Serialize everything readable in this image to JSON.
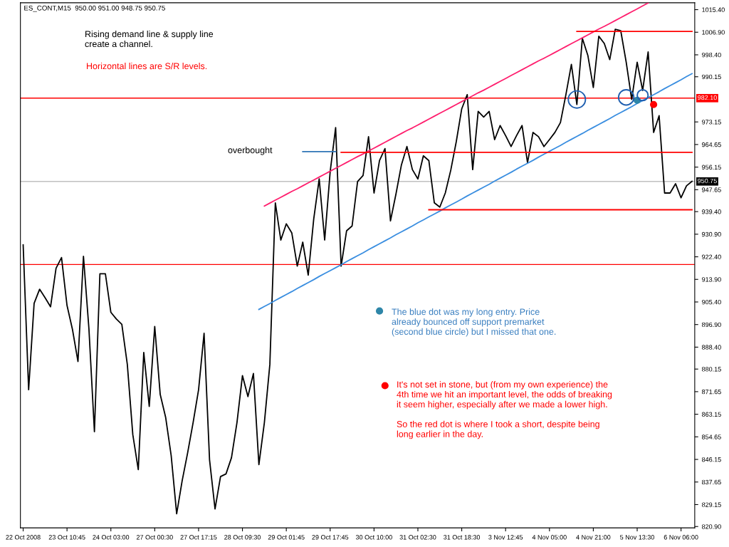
{
  "chart_data": {
    "type": "line",
    "title": "ES_CONT,M15  950.00 951.00 948.75 950.75",
    "annotations": [
      "Rising demand line & supply line\ncreate a channel.",
      "Horizontal lines are S/R levels.",
      "overbought",
      "The blue dot was my long entry. Price\nalready bounced off support premarket\n(second blue circle) but I missed that one.",
      "It's not set in stone, but (from my own experience) the\n4th time we hit an important level, the odds of breaking\nit seem higher, especially after we made a lower high.\n\nSo the red dot is where I took a short, despite being\nlong earlier in the day."
    ],
    "categories": [
      "22 Oct 2008",
      null,
      null,
      null,
      null,
      null,
      null,
      null,
      "23 Oct 10:45",
      null,
      null,
      null,
      null,
      null,
      null,
      null,
      "24 Oct 03:00",
      null,
      null,
      null,
      null,
      null,
      null,
      null,
      "27 Oct 00:30",
      null,
      null,
      null,
      null,
      null,
      null,
      null,
      "27 Oct 17:15",
      null,
      null,
      null,
      null,
      null,
      null,
      null,
      "28 Oct 09:30",
      null,
      null,
      null,
      null,
      null,
      null,
      null,
      "29 Oct 01:45",
      null,
      null,
      null,
      null,
      null,
      null,
      null,
      "29 Oct 17:45",
      null,
      null,
      null,
      null,
      null,
      null,
      null,
      "30 Oct 10:00",
      null,
      null,
      null,
      null,
      null,
      null,
      null,
      "31 Oct 02:30",
      null,
      null,
      null,
      null,
      null,
      null,
      null,
      "31 Oct 18:30",
      null,
      null,
      null,
      null,
      null,
      null,
      null,
      "3 Nov 12:45",
      null,
      null,
      null,
      null,
      null,
      null,
      null,
      "4 Nov 05:00",
      null,
      null,
      null,
      null,
      null,
      null,
      null,
      "4 Nov 21:00",
      null,
      null,
      null,
      null,
      null,
      null,
      null,
      "5 Nov 13:30",
      null,
      null,
      null,
      null,
      null,
      null,
      null,
      "6 Nov 06:00",
      null,
      null
    ],
    "ylim": [
      820.4,
      1018.0
    ],
    "yticks": [
      {
        "value": 1015.4,
        "label": "1015.40"
      },
      {
        "value": 1006.9,
        "label": "1006.90"
      },
      {
        "value": 998.4,
        "label": "998.40"
      },
      {
        "value": 990.15,
        "label": "990.15"
      },
      {
        "value": 973.15,
        "label": "973.15"
      },
      {
        "value": 964.65,
        "label": "964.65"
      },
      {
        "value": 956.15,
        "label": "956.15"
      },
      {
        "value": 947.65,
        "label": "947.65"
      },
      {
        "value": 939.4,
        "label": "939.40"
      },
      {
        "value": 930.9,
        "label": "930.90"
      },
      {
        "value": 922.4,
        "label": "922.40"
      },
      {
        "value": 913.9,
        "label": "913.90"
      },
      {
        "value": 905.4,
        "label": "905.40"
      },
      {
        "value": 896.9,
        "label": "896.90"
      },
      {
        "value": 888.4,
        "label": "888.40"
      },
      {
        "value": 880.15,
        "label": "880.15"
      },
      {
        "value": 871.65,
        "label": "871.65"
      },
      {
        "value": 863.15,
        "label": "863.15"
      },
      {
        "value": 854.65,
        "label": "854.65"
      },
      {
        "value": 846.15,
        "label": "846.15"
      },
      {
        "value": 837.65,
        "label": "837.65"
      },
      {
        "value": 829.15,
        "label": "829.15"
      },
      {
        "value": 820.9,
        "label": "820.90"
      }
    ],
    "ref_lines": [
      {
        "axis": "y",
        "value": 982.1,
        "label": "982.10",
        "color": "#ff0000"
      },
      {
        "axis": "y",
        "value": 919.5,
        "color": "#ff0000"
      },
      {
        "axis": "y",
        "value": 950.75,
        "label": "950.75",
        "color": "#c0c0c0"
      }
    ],
    "series": [
      {
        "color": "#000000",
        "values": [
          926.9,
          872.4,
          904.9,
          910.2,
          907.0,
          903.6,
          918.1,
          922.1,
          904.1,
          895.0,
          883.0,
          922.6,
          895.2,
          856.6,
          916.0,
          916.0,
          901.5,
          899.0,
          897.0,
          881.9,
          855.5,
          842.3,
          886.4,
          866.1,
          896.2,
          870.6,
          861.9,
          847.6,
          825.7,
          838.1,
          848.6,
          860.0,
          872.4,
          893.6,
          846.0,
          827.5,
          839.7,
          840.7,
          846.8,
          860.0,
          877.7,
          869.8,
          878.5,
          844.2,
          860.0,
          881.9,
          942.7,
          928.7,
          934.8,
          931.4,
          918.9,
          927.9,
          915.5,
          936.6,
          951.7,
          928.7,
          954.4,
          971.0,
          918.9,
          932.2,
          934.0,
          950.7,
          953.0,
          967.6,
          946.4,
          958.6,
          963.1,
          935.9,
          946.0,
          957.0,
          963.9,
          955.2,
          951.7,
          960.4,
          958.6,
          942.7,
          941.1,
          946.4,
          955.0,
          965.7,
          978.1,
          983.4,
          955.2,
          977.1,
          975.0,
          977.1,
          966.5,
          971.8,
          968.0,
          963.9,
          968.0,
          971.8,
          957.8,
          969.2,
          967.6,
          963.9,
          966.5,
          969.2,
          972.9,
          983.4,
          994.8,
          979.7,
          1004.6,
          998.2,
          986.1,
          1005.4,
          1002.7,
          996.6,
          1008.0,
          1007.5,
          995.6,
          981.6,
          995.6,
          985.0,
          999.5,
          969.2,
          975.5,
          946.4,
          946.4,
          949.9,
          944.6,
          949.1,
          950.8
        ]
      },
      {
        "type": "line",
        "color": "#ff1f6e",
        "values": [
          null,
          null,
          null,
          null,
          null,
          null,
          null,
          null,
          null,
          null,
          null,
          null,
          null,
          null,
          null,
          null,
          null,
          null,
          null,
          null,
          null,
          null,
          null,
          null,
          null,
          null,
          null,
          null,
          null,
          null,
          null,
          null,
          null,
          null,
          null,
          null,
          null,
          null,
          null,
          null,
          null,
          null,
          null,
          null,
          941.5,
          942.6,
          943.7,
          944.8,
          945.9,
          947.0,
          948.0,
          949.1,
          950.2,
          951.3,
          952.4,
          953.5,
          954.6,
          955.7,
          956.8,
          957.9,
          959.0,
          960.1,
          961.1,
          962.2,
          963.3,
          964.4,
          965.5,
          966.6,
          967.7,
          968.8,
          969.9,
          970.9,
          972.0,
          973.1,
          974.2,
          975.3,
          976.4,
          977.5,
          978.6,
          979.7,
          980.8,
          981.9,
          983.0,
          984.1,
          985.1,
          986.2,
          987.3,
          988.4,
          989.5,
          990.6,
          991.7,
          992.8,
          993.9,
          995.0,
          996.1,
          997.1,
          998.2,
          999.3,
          1000.4,
          1001.5,
          1002.6,
          1003.7,
          1004.8,
          1005.9,
          1007.0,
          1008.1,
          1009.1,
          1010.2,
          1011.3,
          1012.4,
          1013.5,
          1014.6,
          1015.7,
          1016.8,
          1017.9,
          null,
          null,
          null,
          null,
          null,
          null,
          null,
          null
        ]
      },
      {
        "type": "line",
        "color": "#3a8ee0",
        "values": [
          null,
          null,
          null,
          null,
          null,
          null,
          null,
          null,
          null,
          null,
          null,
          null,
          null,
          null,
          null,
          null,
          null,
          null,
          null,
          null,
          null,
          null,
          null,
          null,
          null,
          null,
          null,
          null,
          null,
          null,
          null,
          null,
          null,
          null,
          null,
          null,
          null,
          null,
          null,
          null,
          null,
          null,
          null,
          902.6,
          903.7,
          904.8,
          906.0,
          907.1,
          908.2,
          909.3,
          910.5,
          911.6,
          912.7,
          913.8,
          915.0,
          916.1,
          917.2,
          918.3,
          919.4,
          920.6,
          921.7,
          922.8,
          923.9,
          925.1,
          926.2,
          927.3,
          928.4,
          929.5,
          930.7,
          931.8,
          932.9,
          934.0,
          935.2,
          936.3,
          937.4,
          938.5,
          939.6,
          940.8,
          941.9,
          943.0,
          944.1,
          945.3,
          946.4,
          947.5,
          948.6,
          949.7,
          950.9,
          952.0,
          953.1,
          954.2,
          955.4,
          956.5,
          957.6,
          958.7,
          959.9,
          961.0,
          962.1,
          963.2,
          964.3,
          965.5,
          966.6,
          967.7,
          968.8,
          970.0,
          971.1,
          972.2,
          973.3,
          974.4,
          975.6,
          976.7,
          977.8,
          978.9,
          980.1,
          981.2,
          982.3,
          983.4,
          984.5,
          985.7,
          986.8,
          987.9,
          989.0,
          990.2,
          991.3
        ]
      },
      {
        "type": "line",
        "color": "#2e75b6",
        "values": [
          null,
          null,
          null,
          null,
          null,
          null,
          null,
          null,
          null,
          null,
          null,
          null,
          null,
          null,
          null,
          null,
          null,
          null,
          null,
          null,
          null,
          null,
          null,
          null,
          null,
          null,
          null,
          null,
          null,
          null,
          null,
          null,
          null,
          null,
          null,
          null,
          null,
          null,
          null,
          null,
          null,
          null,
          null,
          null,
          null,
          null,
          null,
          null,
          null,
          null,
          null,
          962.0,
          962.0,
          962.0,
          962.0,
          962.0,
          962.0,
          962.0,
          null,
          null,
          null,
          null,
          null,
          null,
          null,
          null,
          null,
          null,
          null,
          null,
          null,
          null,
          null,
          null,
          null,
          null,
          null,
          null,
          null,
          null,
          null,
          null,
          null,
          null,
          null,
          null,
          null,
          null,
          null,
          null,
          null,
          null,
          null,
          null,
          null,
          null,
          null,
          null,
          null,
          null,
          null,
          null,
          null,
          null,
          null,
          null,
          null,
          null,
          null,
          null,
          null,
          null,
          null,
          null,
          null,
          null,
          null,
          null,
          null,
          null,
          null,
          null,
          null
        ]
      },
      {
        "type": "line",
        "color": "#ff0000",
        "values": [
          null,
          null,
          null,
          null,
          null,
          null,
          null,
          null,
          null,
          null,
          null,
          null,
          null,
          null,
          null,
          null,
          null,
          null,
          null,
          null,
          null,
          null,
          null,
          null,
          null,
          null,
          null,
          null,
          null,
          null,
          null,
          null,
          null,
          null,
          null,
          null,
          null,
          null,
          null,
          null,
          null,
          null,
          null,
          null,
          null,
          null,
          null,
          null,
          null,
          null,
          null,
          null,
          null,
          null,
          null,
          null,
          null,
          null,
          null,
          null,
          null,
          null,
          null,
          null,
          null,
          null,
          null,
          null,
          null,
          null,
          null,
          null,
          null,
          null,
          null,
          null,
          null,
          null,
          null,
          null,
          null,
          null,
          null,
          null,
          null,
          null,
          null,
          null,
          null,
          null,
          null,
          null,
          null,
          null,
          null,
          null,
          null,
          null,
          null,
          null,
          null,
          1007.2,
          1007.2,
          1007.2,
          1007.2,
          1007.2,
          1007.2,
          1007.2,
          1007.2,
          1007.2,
          1007.2,
          1007.2,
          1007.2,
          1007.2,
          1007.2,
          1007.2,
          1007.2,
          1007.2,
          1007.2,
          1007.2,
          1007.2,
          1007.2,
          1007.2
        ]
      },
      {
        "type": "line",
        "color": "#ff0000",
        "values": [
          null,
          null,
          null,
          null,
          null,
          null,
          null,
          null,
          null,
          null,
          null,
          null,
          null,
          null,
          null,
          null,
          null,
          null,
          null,
          null,
          null,
          null,
          null,
          null,
          null,
          null,
          null,
          null,
          null,
          null,
          null,
          null,
          null,
          null,
          null,
          null,
          null,
          null,
          null,
          null,
          null,
          null,
          null,
          null,
          null,
          null,
          null,
          null,
          null,
          null,
          null,
          null,
          null,
          null,
          null,
          null,
          null,
          null,
          961.7,
          961.7,
          961.7,
          961.7,
          961.7,
          961.7,
          961.7,
          961.7,
          961.7,
          961.7,
          961.7,
          961.7,
          961.7,
          961.7,
          961.7,
          961.7,
          961.7,
          961.7,
          961.7,
          961.7,
          961.7,
          961.7,
          961.7,
          961.7,
          961.7,
          961.7,
          961.7,
          961.7,
          961.7,
          961.7,
          961.7,
          961.7,
          961.7,
          961.7,
          961.7,
          961.7,
          961.7,
          961.7,
          961.7,
          961.7,
          961.7,
          961.7,
          961.7,
          961.7,
          961.7,
          961.7,
          961.7,
          961.7,
          961.7,
          961.7,
          961.7,
          961.7,
          961.7,
          961.7,
          961.7,
          961.7,
          961.7,
          961.7,
          961.7,
          961.7,
          961.7,
          961.7,
          961.7,
          961.7,
          961.7
        ]
      },
      {
        "type": "line",
        "color": "#ff0000",
        "values": [
          null,
          null,
          null,
          null,
          null,
          null,
          null,
          null,
          null,
          null,
          null,
          null,
          null,
          null,
          null,
          null,
          null,
          null,
          null,
          null,
          null,
          null,
          null,
          null,
          null,
          null,
          null,
          null,
          null,
          null,
          null,
          null,
          null,
          null,
          null,
          null,
          null,
          null,
          null,
          null,
          null,
          null,
          null,
          null,
          null,
          null,
          null,
          null,
          null,
          null,
          null,
          null,
          null,
          null,
          null,
          null,
          null,
          null,
          null,
          null,
          null,
          null,
          null,
          null,
          null,
          null,
          null,
          null,
          null,
          null,
          null,
          null,
          null,
          null,
          940.1,
          940.1,
          940.1,
          940.1,
          940.1,
          940.1,
          940.1,
          940.1,
          940.1,
          940.1,
          940.1,
          940.1,
          940.1,
          940.1,
          940.1,
          940.1,
          940.1,
          940.1,
          940.1,
          940.1,
          940.1,
          940.1,
          940.1,
          940.1,
          940.1,
          940.1,
          940.1,
          940.1,
          940.1,
          940.1,
          940.1,
          940.1,
          940.1,
          940.1,
          940.1,
          940.1,
          940.1,
          940.1,
          940.1,
          940.1,
          940.1,
          940.1,
          940.1,
          940.1,
          940.1,
          940.1,
          940.1,
          940.1,
          940.1
        ]
      },
      {
        "type": "bubble",
        "color": "#1f5fb0",
        "values": [
          null,
          null,
          null,
          null,
          null,
          null,
          null,
          null,
          null,
          null,
          null,
          null,
          null,
          null,
          null,
          null,
          null,
          null,
          null,
          null,
          null,
          null,
          null,
          null,
          null,
          null,
          null,
          null,
          null,
          null,
          null,
          null,
          null,
          null,
          null,
          null,
          null,
          null,
          null,
          null,
          null,
          null,
          null,
          null,
          null,
          null,
          null,
          null,
          null,
          null,
          null,
          null,
          null,
          null,
          null,
          null,
          null,
          null,
          null,
          null,
          null,
          null,
          null,
          null,
          null,
          null,
          null,
          null,
          null,
          null,
          null,
          null,
          null,
          null,
          null,
          null,
          null,
          null,
          null,
          null,
          null,
          null,
          null,
          null,
          null,
          null,
          null,
          null,
          null,
          null,
          null,
          null,
          null,
          null,
          null,
          null,
          null,
          null,
          null,
          null,
          null,
          981.6,
          null,
          null,
          null,
          null,
          null,
          null,
          null,
          null,
          982.4,
          null,
          null,
          983.2,
          null,
          null,
          null,
          null,
          null,
          null,
          null,
          null,
          null
        ],
        "sizes": [
          null,
          null,
          null,
          null,
          null,
          null,
          null,
          null,
          null,
          null,
          null,
          null,
          null,
          null,
          null,
          null,
          null,
          null,
          null,
          null,
          null,
          null,
          null,
          null,
          null,
          null,
          null,
          null,
          null,
          null,
          null,
          null,
          null,
          null,
          null,
          null,
          null,
          null,
          null,
          null,
          null,
          null,
          null,
          null,
          null,
          null,
          null,
          null,
          null,
          null,
          null,
          null,
          null,
          null,
          null,
          null,
          null,
          null,
          null,
          null,
          null,
          null,
          null,
          null,
          null,
          null,
          null,
          null,
          null,
          null,
          null,
          null,
          null,
          null,
          null,
          null,
          null,
          null,
          null,
          null,
          null,
          null,
          null,
          null,
          null,
          null,
          null,
          null,
          null,
          null,
          null,
          null,
          null,
          null,
          null,
          null,
          null,
          null,
          null,
          null,
          null,
          1,
          null,
          null,
          null,
          null,
          null,
          null,
          null,
          null,
          0.8,
          null,
          null,
          0.4,
          null,
          null,
          null,
          null,
          null,
          null,
          null,
          null,
          null
        ]
      },
      {
        "type": "scatter",
        "marker": "circle",
        "color": "#2e86a8",
        "values": [
          null,
          null,
          null,
          null,
          null,
          null,
          null,
          null,
          null,
          null,
          null,
          null,
          null,
          null,
          null,
          null,
          null,
          null,
          null,
          null,
          null,
          null,
          null,
          null,
          null,
          null,
          null,
          null,
          null,
          null,
          null,
          null,
          null,
          null,
          null,
          null,
          null,
          null,
          null,
          null,
          null,
          null,
          null,
          null,
          null,
          null,
          null,
          null,
          null,
          null,
          null,
          null,
          null,
          null,
          null,
          null,
          null,
          null,
          null,
          null,
          null,
          null,
          null,
          null,
          null,
          902.0,
          null,
          null,
          null,
          null,
          null,
          null,
          null,
          null,
          null,
          null,
          null,
          null,
          null,
          null,
          null,
          null,
          null,
          null,
          null,
          null,
          null,
          null,
          null,
          null,
          null,
          null,
          null,
          null,
          null,
          null,
          null,
          null,
          null,
          null,
          null,
          null,
          null,
          null,
          null,
          null,
          null,
          null,
          null,
          null,
          null,
          null,
          981.3,
          null,
          null,
          null,
          null,
          null,
          null,
          null,
          null,
          null,
          null
        ]
      },
      {
        "type": "scatter",
        "marker": "circle",
        "color": "#ff0000",
        "values": [
          null,
          null,
          null,
          null,
          null,
          null,
          null,
          null,
          null,
          null,
          null,
          null,
          null,
          null,
          null,
          null,
          null,
          null,
          null,
          null,
          null,
          null,
          null,
          null,
          null,
          null,
          null,
          null,
          null,
          null,
          null,
          null,
          null,
          null,
          null,
          null,
          null,
          null,
          null,
          null,
          null,
          null,
          null,
          null,
          null,
          null,
          null,
          null,
          null,
          null,
          null,
          null,
          null,
          null,
          null,
          null,
          null,
          null,
          null,
          null,
          null,
          null,
          null,
          null,
          null,
          null,
          873.9,
          null,
          null,
          null,
          null,
          null,
          null,
          null,
          null,
          null,
          null,
          null,
          null,
          null,
          null,
          null,
          null,
          null,
          null,
          null,
          null,
          null,
          null,
          null,
          null,
          null,
          null,
          null,
          null,
          null,
          null,
          null,
          null,
          null,
          null,
          null,
          null,
          null,
          null,
          null,
          null,
          null,
          null,
          null,
          null,
          null,
          null,
          null,
          null,
          979.7,
          null,
          null,
          null,
          null,
          null,
          null,
          null
        ]
      }
    ]
  }
}
